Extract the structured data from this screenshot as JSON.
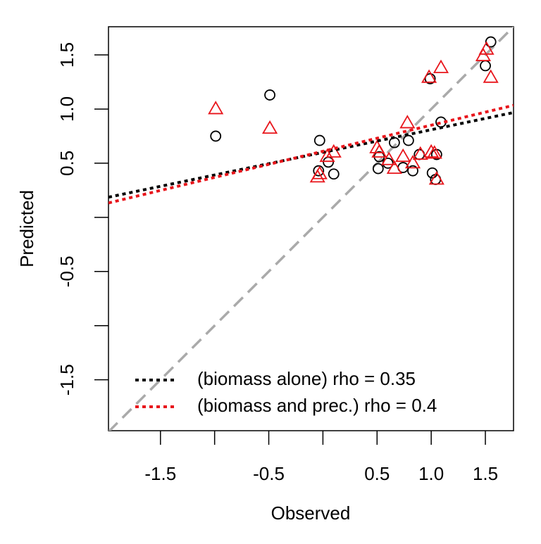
{
  "chart_data": {
    "type": "scatter",
    "xlabel": "Observed",
    "ylabel": "Predicted",
    "xlim": [
      -1.98,
      1.76
    ],
    "ylim": [
      -1.97,
      1.76
    ],
    "xticks": [
      -1.5,
      {
        "value": -1,
        "label": null
      },
      -0.5,
      {
        "value": 0,
        "label": null
      },
      0.5,
      {
        "value": 1,
        "label": "1.0"
      },
      1.5
    ],
    "yticks": [
      -1.5,
      {
        "value": -1,
        "label": null
      },
      -0.5,
      {
        "value": 0,
        "label": null
      },
      0.5,
      {
        "value": 1,
        "label": "1.0"
      },
      1.5
    ],
    "reference_line": {
      "intercept": 0,
      "slope": 1,
      "color": "#aaaaaa"
    },
    "series": [
      {
        "marker": "circle",
        "color": "#000000",
        "x": [
          -0.99,
          -0.49,
          -0.03,
          -0.04,
          0.05,
          0.1,
          0.51,
          0.52,
          0.6,
          0.66,
          0.74,
          0.79,
          0.83,
          0.89,
          0.99,
          1.01,
          1.04,
          1.05,
          1.09,
          1.5,
          1.55
        ],
        "values": [
          0.75,
          1.13,
          0.71,
          0.43,
          0.51,
          0.4,
          0.45,
          0.56,
          0.5,
          0.69,
          0.46,
          0.71,
          0.43,
          0.58,
          1.28,
          0.41,
          0.35,
          0.58,
          0.88,
          1.4,
          1.62
        ]
      },
      {
        "marker": "triangle",
        "color": "#e8151b",
        "x": [
          -0.99,
          -0.49,
          -0.05,
          -0.03,
          0.04,
          0.1,
          0.5,
          0.52,
          0.61,
          0.66,
          0.74,
          0.78,
          0.83,
          0.9,
          0.98,
          1.0,
          1.03,
          1.05,
          1.09,
          1.48,
          1.51,
          1.55
        ],
        "values": [
          1.0,
          0.82,
          0.37,
          0.4,
          0.56,
          0.6,
          0.64,
          0.6,
          0.53,
          0.45,
          0.56,
          0.87,
          0.5,
          0.58,
          1.29,
          0.6,
          0.59,
          0.35,
          1.38,
          1.49,
          1.55,
          1.29
        ]
      }
    ],
    "lines": [
      {
        "name": "(biomass alone) rho = 0.35",
        "color": "#000000",
        "intercept": 0.6,
        "slope": 0.209
      },
      {
        "name": "(biomass and prec.) rho = 0.4",
        "color": "#e8151b",
        "intercept": 0.61,
        "slope": 0.241
      }
    ],
    "legend": "bottom"
  }
}
